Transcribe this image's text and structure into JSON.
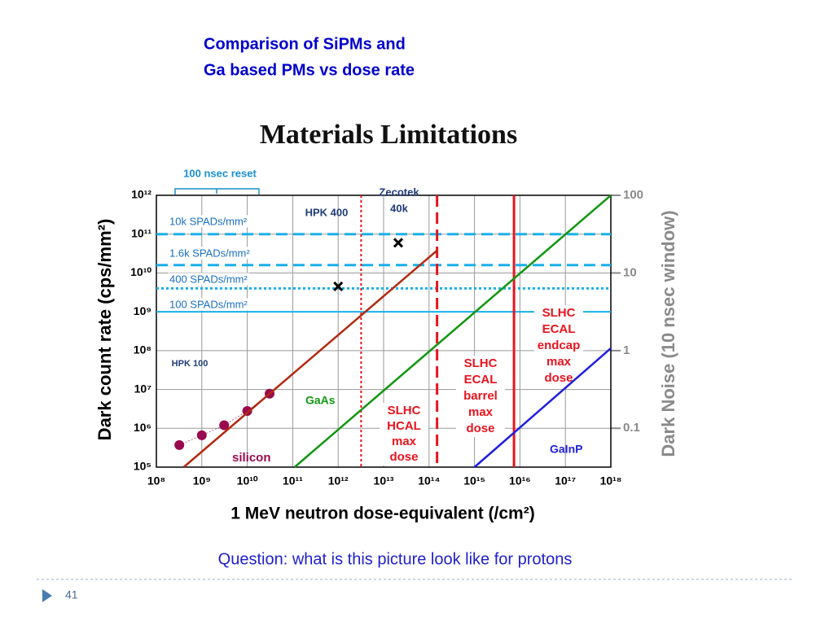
{
  "slide": {
    "title_lines": [
      "Comparison of SiPMs and",
      "Ga based PMs vs dose rate"
    ],
    "question": "Question:  what is this picture look like for protons",
    "page_number": "41"
  },
  "chart_data": {
    "type": "line",
    "title": "Materials Limitations",
    "x_label": "1 MeV neutron dose-equivalent (/cm²)",
    "y_label": "Dark count rate (cps/mm²)",
    "y2_label": "Dark Noise (10 nsec window)",
    "log_x": true,
    "log_y": true,
    "grid": true,
    "xlim": [
      100000000.0,
      1e+18
    ],
    "ylim": [
      100000.0,
      1000000000000.0
    ],
    "y2lim": [
      0.0316,
      100
    ],
    "xticks": [
      {
        "value": 100000000.0,
        "label": "10⁸"
      },
      {
        "value": 1000000000.0,
        "label": "10⁹"
      },
      {
        "value": 10000000000.0,
        "label": "10¹⁰"
      },
      {
        "value": 100000000000.0,
        "label": "10¹¹"
      },
      {
        "value": 1000000000000.0,
        "label": "10¹²"
      },
      {
        "value": 10000000000000.0,
        "label": "10¹³"
      },
      {
        "value": 100000000000000.0,
        "label": "10¹⁴"
      },
      {
        "value": 1000000000000000.0,
        "label": "10¹⁵"
      },
      {
        "value": 1e+16,
        "label": "10¹⁶"
      },
      {
        "value": 1e+17,
        "label": "10¹⁷"
      },
      {
        "value": 1e+18,
        "label": "10¹⁸"
      }
    ],
    "yticks": [
      {
        "value": 100000.0,
        "label": "10⁵"
      },
      {
        "value": 1000000.0,
        "label": "10⁶"
      },
      {
        "value": 10000000.0,
        "label": "10⁷"
      },
      {
        "value": 100000000.0,
        "label": "10⁸"
      },
      {
        "value": 1000000000.0,
        "label": "10⁹"
      },
      {
        "value": 10000000000.0,
        "label": "10¹⁰"
      },
      {
        "value": 100000000000.0,
        "label": "10¹¹"
      },
      {
        "value": 1000000000000.0,
        "label": "10¹²"
      }
    ],
    "y2ticks": [
      0.1,
      1,
      10,
      100
    ],
    "series": [
      {
        "name": "silicon",
        "color": "#990a4e",
        "marker": "circle",
        "x": [
          320000000.0,
          1000000000.0,
          3100000000.0,
          10000000000.0,
          31000000000.0
        ],
        "values": [
          370000.0,
          660000.0,
          1200000.0,
          2800000.0,
          7800000.0
        ]
      },
      {
        "color": "#b02a10",
        "x": [
          400000000.0,
          150000000000000.0
        ],
        "values": [
          100000.0,
          38000000000.0
        ]
      },
      {
        "name": "GaAs",
        "color": "#129612",
        "x": [
          110000000000.0,
          1e+18
        ],
        "values": [
          100000.0,
          1000000000000.0
        ]
      },
      {
        "name": "GaInP",
        "color": "#1f1fdd",
        "x": [
          1000000000000000.0,
          1e+18
        ],
        "values": [
          100000.0,
          115000000.0
        ]
      },
      {
        "label": [
          "HPK 400"
        ],
        "color": "#000000",
        "marker": "x",
        "x": [
          1000000000000.0
        ],
        "values": [
          4500000000.0
        ]
      },
      {
        "label": [
          "Zecotek",
          "40k"
        ],
        "color": "#000000",
        "marker": "x",
        "x": [
          21000000000000.0
        ],
        "values": [
          60000000000.0
        ]
      }
    ],
    "hlines": [
      {
        "value": 100000000000.0,
        "style": "dashed",
        "label": "10k SPADs/mm²"
      },
      {
        "value": 16000000000.0,
        "style": "dashed",
        "label": "1.6k SPADs/mm²"
      },
      {
        "value": 4000000000.0,
        "style": "dotted",
        "label": "400 SPADs/mm²"
      },
      {
        "value": 1000000000.0,
        "style": "solid",
        "label": "100 SPADs/mm²"
      }
    ],
    "hline_color": "#1ab0e8",
    "vlines": [
      {
        "x": 3200000000000.0,
        "style": "dotted",
        "label": [
          "SLHC",
          "HCAL",
          "max",
          "dose"
        ]
      },
      {
        "x": 150000000000000.0,
        "style": "dashed",
        "label": [
          "SLHC",
          "ECAL",
          "barrel",
          "max",
          "dose"
        ]
      },
      {
        "x": 7400000000000000.0,
        "style": "solid",
        "label": [
          "SLHC",
          "ECAL",
          "endcap",
          "max",
          "dose"
        ]
      }
    ],
    "vline_color": "#e8141e",
    "annotations": [
      {
        "text": "100 nsec reset"
      },
      {
        "text": "HPK 100"
      }
    ]
  }
}
